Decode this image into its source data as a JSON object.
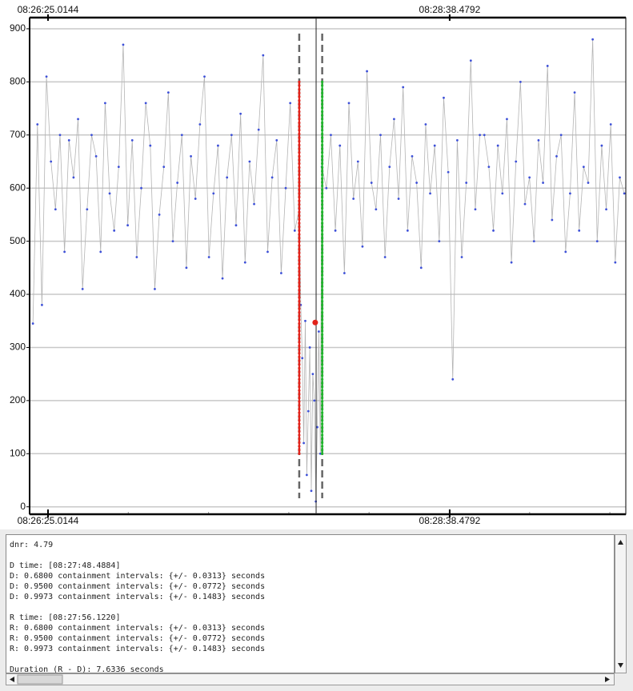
{
  "chart_data": {
    "type": "line",
    "xlim": [
      18.9,
      217.0
    ],
    "xticks": [
      {
        "value": 25.0144,
        "label": "08:26:25.0144"
      },
      {
        "value": 158.4792,
        "label": "08:28:38.4792"
      }
    ],
    "ylim": [
      -14,
      921
    ],
    "yticks": [
      0,
      100,
      200,
      300,
      400,
      500,
      600,
      700,
      800,
      900
    ],
    "grid": true,
    "color": "#3d50d8",
    "line_color": "#b4b4b4",
    "x": [
      20,
      21.5,
      23,
      24.5,
      26,
      27.5,
      29,
      30.5,
      32,
      33.5,
      35,
      36.5,
      38,
      39.5,
      41,
      42.5,
      44,
      45.5,
      47,
      48.5,
      50,
      51.5,
      53,
      54.5,
      56,
      57.5,
      59,
      60.5,
      62,
      63.5,
      65,
      66.5,
      68,
      69.5,
      71,
      72.5,
      74,
      75.5,
      77,
      78.5,
      80,
      81.5,
      83,
      84.5,
      86,
      87.5,
      89,
      90.5,
      92,
      93.5,
      95,
      96.5,
      98,
      99.5,
      101,
      102.5,
      104,
      105.5,
      107,
      108.5,
      109,
      109.5,
      110,
      110.5,
      111,
      111.5,
      112,
      112.5,
      113,
      113.5,
      114,
      114.5,
      115,
      115.5,
      116,
      117.5,
      119,
      120.5,
      122,
      123.5,
      125,
      126.5,
      128,
      129.5,
      131,
      132.5,
      134,
      135.5,
      137,
      138.5,
      140,
      141.5,
      143,
      144.5,
      146,
      147.5,
      149,
      150.5,
      152,
      153.5,
      155,
      156.5,
      158,
      159.5,
      161,
      162.5,
      164,
      165.5,
      167,
      168.5,
      170,
      171.5,
      173,
      174.5,
      176,
      177.5,
      179,
      180.5,
      182,
      183.5,
      185,
      186.5,
      188,
      189.5,
      191,
      192.5,
      194,
      195.5,
      197,
      198.5,
      200,
      201.5,
      203,
      204.5,
      206,
      207.5,
      209,
      210.5,
      212,
      213.5,
      215,
      216.5
    ],
    "values": [
      345,
      720,
      380,
      810,
      650,
      560,
      700,
      480,
      690,
      620,
      730,
      410,
      560,
      700,
      660,
      480,
      760,
      590,
      520,
      640,
      870,
      530,
      690,
      470,
      600,
      760,
      680,
      410,
      550,
      640,
      780,
      500,
      610,
      700,
      450,
      660,
      580,
      720,
      810,
      470,
      590,
      680,
      430,
      620,
      700,
      530,
      740,
      460,
      650,
      570,
      710,
      850,
      480,
      620,
      690,
      440,
      600,
      760,
      520,
      560,
      380,
      280,
      120,
      350,
      60,
      180,
      300,
      30,
      250,
      200,
      10,
      150,
      330,
      100,
      640,
      600,
      700,
      520,
      680,
      440,
      760,
      580,
      650,
      490,
      820,
      610,
      560,
      700,
      470,
      640,
      730,
      580,
      790,
      520,
      660,
      610,
      450,
      720,
      590,
      680,
      500,
      770,
      630,
      240,
      690,
      470,
      610,
      840,
      560,
      700,
      700,
      640,
      520,
      680,
      590,
      730,
      460,
      650,
      800,
      570,
      620,
      500,
      690,
      610,
      830,
      540,
      660,
      700,
      480,
      590,
      780,
      520,
      640,
      610,
      880,
      500,
      680,
      560,
      720,
      460,
      620,
      590
    ],
    "markers": [
      {
        "x": 108.4884,
        "from": 100,
        "to": 800,
        "color": "#e2231a"
      },
      {
        "x": 116.122,
        "from": 100,
        "to": 800,
        "color": "#1fb52b"
      }
    ],
    "cursor_x": 114.1,
    "highlight": {
      "x": 113.8,
      "y": 347,
      "color": "#e2231a"
    }
  },
  "log": [
    [
      "dnr: 4.79"
    ],
    [
      "D time: [08:27:48.4884]",
      "D: 0.6800 containment intervals: {+/- 0.0313} seconds",
      "D: 0.9500 containment intervals: {+/- 0.0772} seconds",
      "D: 0.9973 containment intervals: {+/- 0.1483} seconds"
    ],
    [
      "R time: [08:27:56.1220]",
      "R: 0.6800 containment intervals: {+/- 0.0313} seconds",
      "R: 0.9500 containment intervals: {+/- 0.0772} seconds",
      "R: 0.9973 containment intervals: {+/- 0.1483} seconds"
    ],
    [
      "Duration (R - D): 7.6336 seconds"
    ]
  ]
}
